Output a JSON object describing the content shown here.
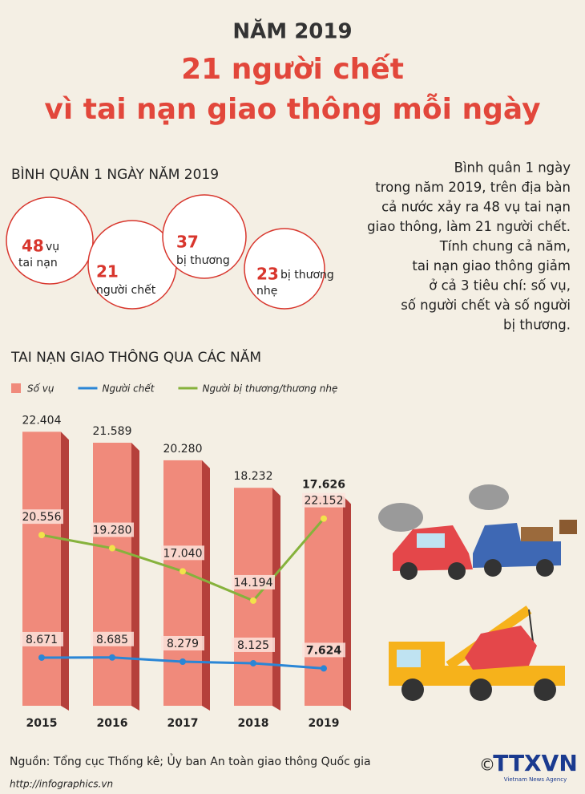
{
  "header": {
    "kicker": "NĂM 2019",
    "title_line1": "21 người chết",
    "title_line2": "vì tai nạn giao thông mỗi ngày"
  },
  "stats": {
    "heading": "BÌNH QUÂN 1 NGÀY NĂM 2019",
    "items": [
      {
        "number": 48,
        "label": [
          "vụ",
          "tai nạn"
        ]
      },
      {
        "number": 21,
        "label": [
          "người chết"
        ]
      },
      {
        "number": 37,
        "label": [
          "bị thương"
        ]
      },
      {
        "number": 23,
        "label": [
          "bị thương",
          "nhẹ"
        ]
      }
    ]
  },
  "summary": [
    "Bình quân 1 ngày",
    "trong năm 2019, trên địa bàn",
    "cả nước xảy ra 48 vụ tai nạn",
    "giao thông, làm 21 người chết.",
    "Tính chung cả năm,",
    "tai nạn giao thông giảm",
    "ở cả 3 tiêu chí: số vụ,",
    "số người chết và số người",
    "bị thương."
  ],
  "chart_data": {
    "type": "bar",
    "title": "TAI NẠN GIAO THÔNG QUA CÁC NĂM",
    "categories": [
      "2015",
      "2016",
      "2017",
      "2018",
      "2019"
    ],
    "ylim": [
      2000,
      23500
    ],
    "y2lim": [
      4000,
      32000
    ],
    "series": [
      {
        "name": "Số vụ",
        "type": "bar",
        "color": "#f08a7b",
        "values": [
          22404,
          21589,
          20280,
          18232,
          17626
        ],
        "value_labels": [
          "22.404",
          "21.589",
          "20.280",
          "18.232",
          "17.626"
        ]
      },
      {
        "name": "Người chết",
        "type": "line",
        "axis": "y2",
        "color": "#2a86d6",
        "values": [
          8671,
          8685,
          8279,
          8125,
          7624
        ],
        "value_labels": [
          "8.671",
          "8.685",
          "8.279",
          "8.125",
          "7.624"
        ]
      },
      {
        "name": "Người bị thương/thương nhẹ",
        "type": "line",
        "axis": "y2",
        "color": "#86b23c",
        "values": [
          20556,
          19280,
          17040,
          14194,
          22152
        ],
        "value_labels": [
          "20.556",
          "19.280",
          "17.040",
          "14.194",
          "22.152"
        ]
      }
    ]
  },
  "footer": {
    "source": "Nguồn: Tổng cục Thống kê; Ủy ban An toàn giao thông Quốc gia",
    "website": "http://infographics.vn",
    "copyright": "©",
    "logo": "TTXVN",
    "logo_sub": "Vietnam News Agency"
  }
}
